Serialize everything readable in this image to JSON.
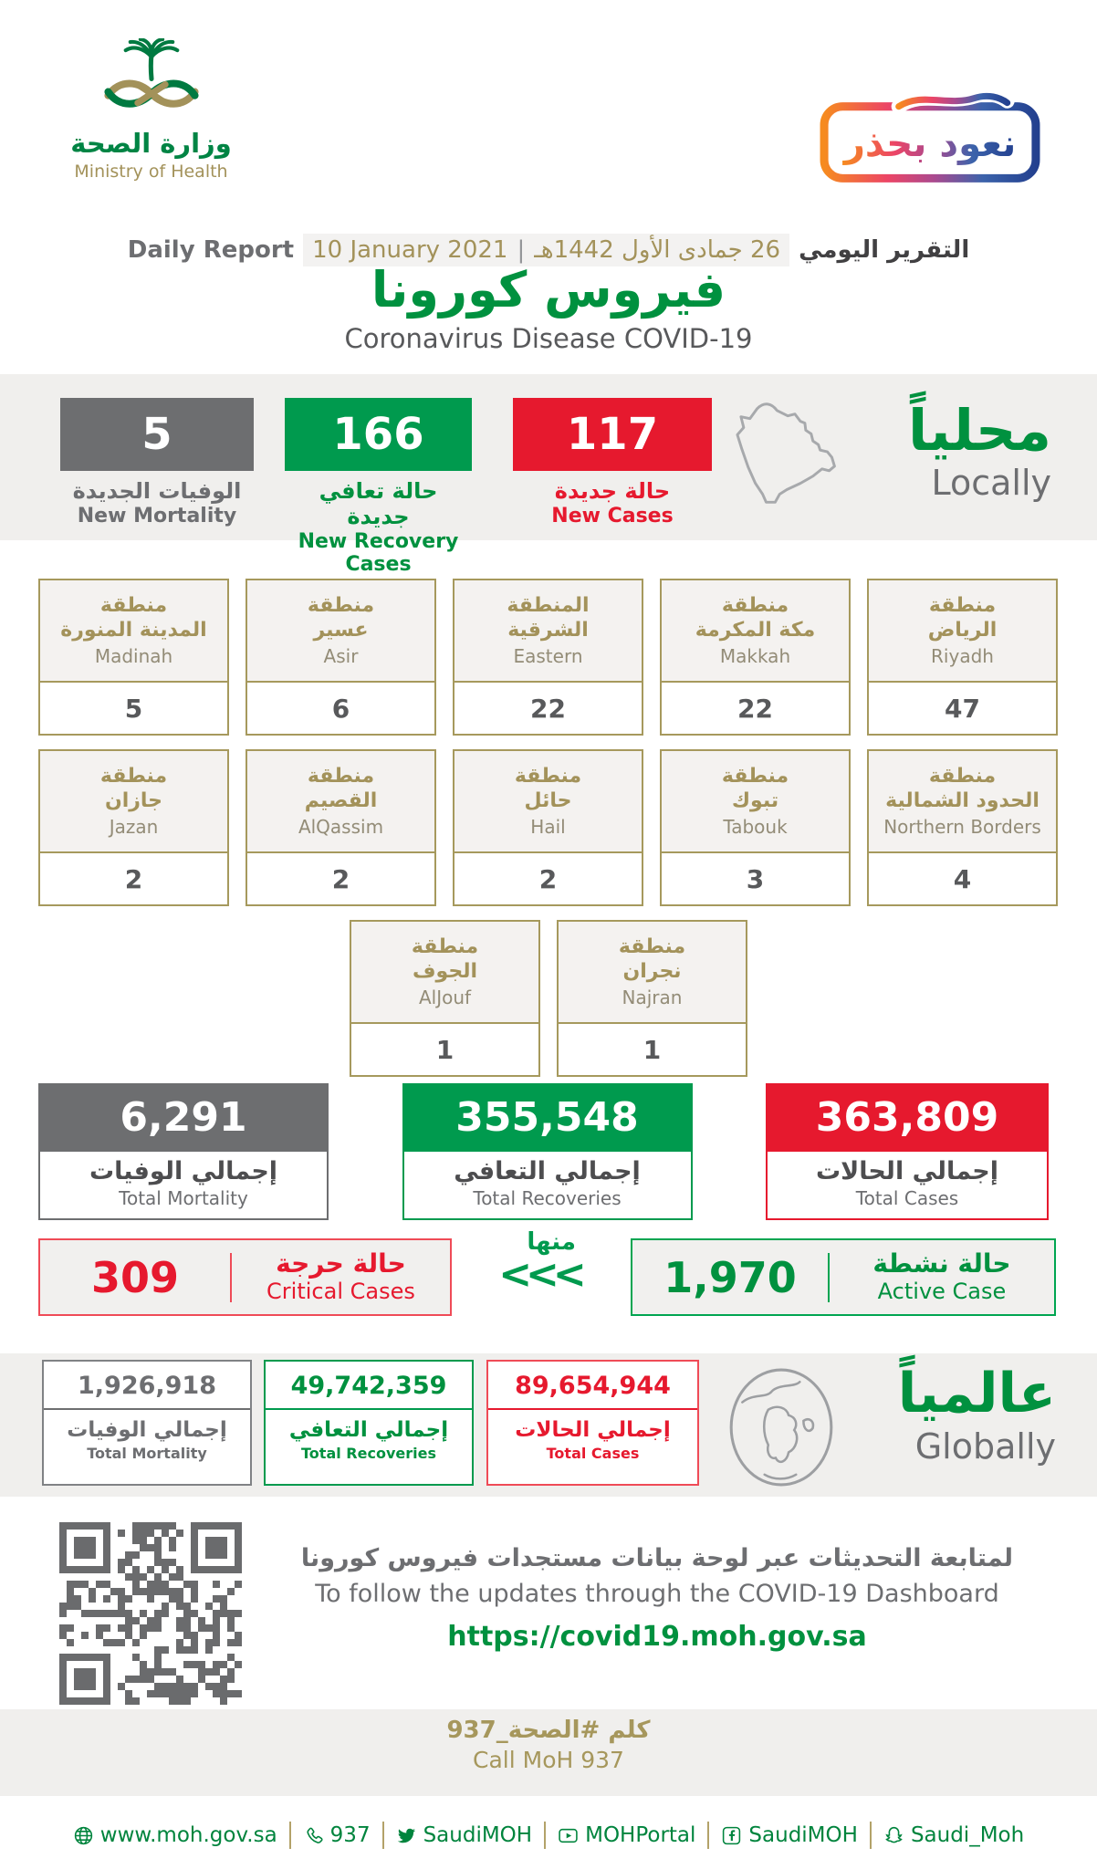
{
  "colors": {
    "green": "#009a4e",
    "green_text": "#00913f",
    "footer_green": "#00843d",
    "red": "#e6192e",
    "gray_box": "#6d6e70",
    "gold": "#a6995d",
    "gold_text": "#a3925a",
    "tan": "#a6975c",
    "band_bg": "#f0efed",
    "badge_gradient": [
      "#f68b1f",
      "#ec4566",
      "#aa4a8f",
      "#3c63ab",
      "#23408f"
    ]
  },
  "header": {
    "ministry_ar": "وزارة الصحة",
    "ministry_en": "Ministry of Health",
    "badge_text": "نعود بحذر",
    "report_en": "Daily Report",
    "date_en": "10 January 2021",
    "date_sep": "|",
    "date_hijri": "26 جمادى الأول 1442هـ",
    "report_ar": "التقرير اليومي",
    "title_ar": "فيروس كورونا",
    "title_en": "Coronavirus Disease COVID-19"
  },
  "locally": {
    "heading_ar": "محلياً",
    "heading_en": "Locally",
    "new_mortality": {
      "value": "5",
      "ar": "الوفيات الجديدة",
      "en": "New Mortality"
    },
    "new_recoveries": {
      "value": "166",
      "ar": "حالة تعافي جديدة",
      "en": "New Recovery Cases"
    },
    "new_cases": {
      "value": "117",
      "ar": "حالة جديدة",
      "en": "New Cases"
    }
  },
  "regions": {
    "r1": [
      {
        "ar1": "منطقة",
        "ar2": "المدينة المنورة",
        "en": "Madinah",
        "value": "5"
      },
      {
        "ar1": "منطقة",
        "ar2": "عسير",
        "en": "Asir",
        "value": "6"
      },
      {
        "ar1": "المنطقة",
        "ar2": "الشرقية",
        "en": "Eastern",
        "value": "22"
      },
      {
        "ar1": "منطقة",
        "ar2": "مكة المكرمة",
        "en": "Makkah",
        "value": "22"
      },
      {
        "ar1": "منطقة",
        "ar2": "الرياض",
        "en": "Riyadh",
        "value": "47"
      }
    ],
    "r2": [
      {
        "ar1": "منطقة",
        "ar2": "جازان",
        "en": "Jazan",
        "value": "2"
      },
      {
        "ar1": "منطقة",
        "ar2": "القصيم",
        "en": "AlQassim",
        "value": "2"
      },
      {
        "ar1": "منطقة",
        "ar2": "حائل",
        "en": "Hail",
        "value": "2"
      },
      {
        "ar1": "منطقة",
        "ar2": "تبوك",
        "en": "Tabouk",
        "value": "3"
      },
      {
        "ar1": "منطقة",
        "ar2": "الحدود الشمالية",
        "en": "Northern Borders",
        "value": "4"
      }
    ],
    "r3": [
      {
        "ar1": "منطقة",
        "ar2": "الجوف",
        "en": "AlJouf",
        "value": "1"
      },
      {
        "ar1": "منطقة",
        "ar2": "نجران",
        "en": "Najran",
        "value": "1"
      }
    ]
  },
  "totals": {
    "mortality": {
      "value": "6,291",
      "ar": "إجمالي الوفيات",
      "en": "Total Mortality"
    },
    "recoveries": {
      "value": "355,548",
      "ar": "إجمالي التعافي",
      "en": "Total Recoveries"
    },
    "cases": {
      "value": "363,809",
      "ar": "إجمالي الحالات",
      "en": "Total Cases"
    }
  },
  "status": {
    "critical": {
      "value": "309",
      "ar": "حالة حرجة",
      "en": "Critical Cases"
    },
    "of_which": "منها",
    "arrows": "<<<",
    "active": {
      "value": "1,970",
      "ar": "حالة نشطة",
      "en": "Active Case"
    }
  },
  "globally": {
    "heading_ar": "عالمياً",
    "heading_en": "Globally",
    "mortality": {
      "value": "1,926,918",
      "ar": "إجمالي الوفيات",
      "en": "Total Mortality"
    },
    "recoveries": {
      "value": "49,742,359",
      "ar": "إجمالي التعافي",
      "en": "Total Recoveries"
    },
    "cases": {
      "value": "89,654,944",
      "ar": "إجمالي الحالات",
      "en": "Total Cases"
    }
  },
  "dashboard": {
    "ar": "لمتابعة التحديثات عبر لوحة بيانات مستجدات فيروس كورونا",
    "en": "To follow the updates through the COVID-19 Dashboard",
    "url": "https://covid19.moh.gov.sa"
  },
  "call": {
    "ar": "كلم #الصحة_937",
    "en": "Call MoH 937"
  },
  "footer": {
    "website": "www.moh.gov.sa",
    "phone": "937",
    "twitter": "SaudiMOH",
    "youtube": "MOHPortal",
    "facebook": "SaudiMOH",
    "snapchat": "Saudi_Moh"
  }
}
